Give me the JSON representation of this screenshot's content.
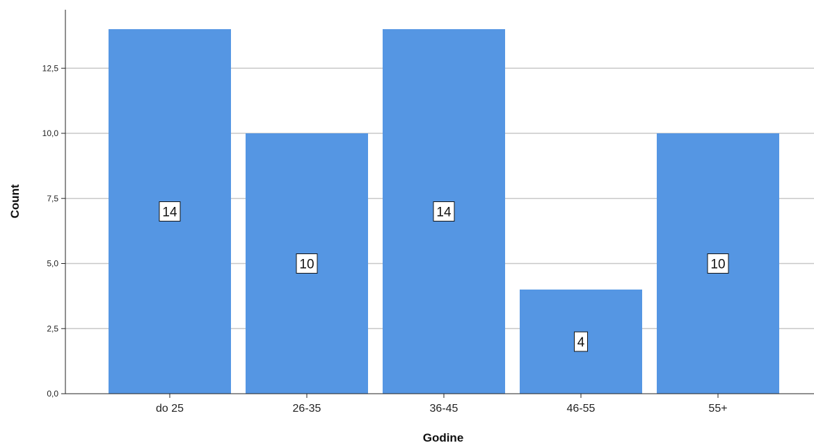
{
  "chart_data": {
    "type": "bar",
    "categories": [
      "do 25",
      "26-35",
      "36-45",
      "46-55",
      "55+"
    ],
    "values": [
      14,
      10,
      14,
      4,
      10
    ],
    "data_labels": [
      "14",
      "10",
      "14",
      "4",
      "10"
    ],
    "xlabel": "Godine",
    "ylabel": "Count",
    "ylim": [
      0,
      15
    ],
    "yticks": [
      0,
      2.5,
      5,
      7.5,
      10,
      12.5
    ],
    "ytick_labels": [
      "0,0",
      "2,5",
      "5,0",
      "7,5",
      "10,0",
      "12,5"
    ],
    "grid": "horizontal",
    "bar_color": "#5596e3"
  }
}
